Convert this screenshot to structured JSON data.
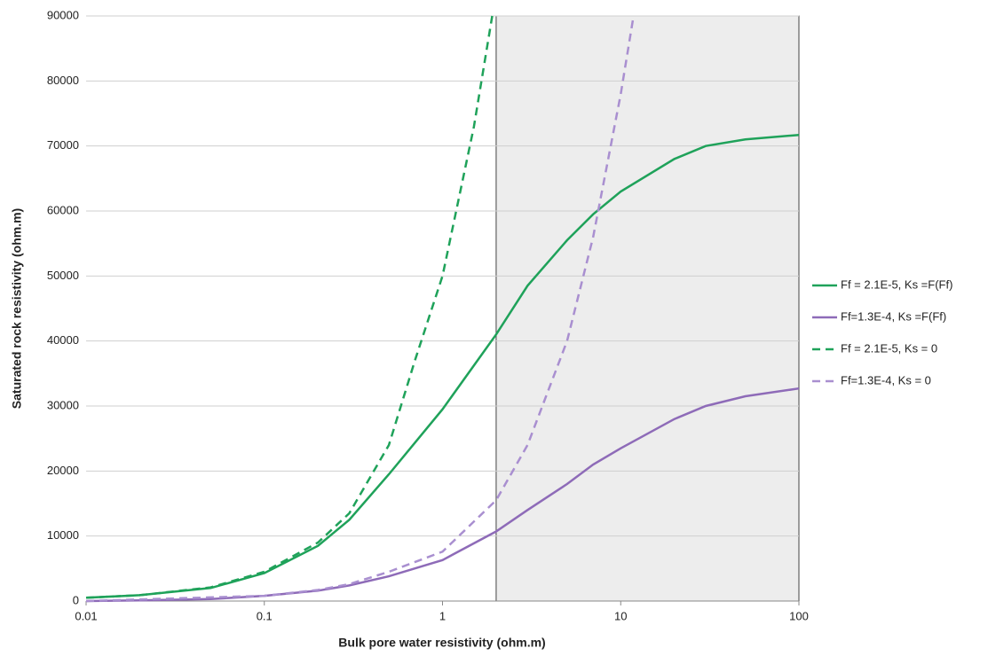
{
  "chart_data": {
    "type": "line",
    "xlabel": "Bulk pore water resistivity (ohm.m)",
    "ylabel": "Saturated rock resistivity (ohm.m)",
    "xscale": "log",
    "xlim": [
      0.01,
      100
    ],
    "xticks": [
      0.01,
      0.1,
      1,
      10,
      100
    ],
    "ylim": [
      0,
      90000
    ],
    "yticks": [
      0,
      10000,
      20000,
      30000,
      40000,
      50000,
      60000,
      70000,
      80000,
      90000
    ],
    "grid": true,
    "legend": "right",
    "shaded_region": [
      2,
      100
    ],
    "series": [
      {
        "name": "Ff = 2.1E-5, Ks =F(Ff)",
        "color": "#1fa25a",
        "dash": false,
        "x": [
          0.01,
          0.02,
          0.05,
          0.1,
          0.2,
          0.3,
          0.5,
          1,
          2,
          3,
          5,
          7,
          10,
          20,
          30,
          50,
          100
        ],
        "values": [
          500,
          900,
          2000,
          4300,
          8500,
          12500,
          19500,
          29500,
          41000,
          48500,
          55500,
          59500,
          63000,
          68000,
          70000,
          71000,
          71700
        ]
      },
      {
        "name": "Ff=1.3E-4, Ks =F(Ff)",
        "color": "#8e6bb8",
        "dash": false,
        "x": [
          0.01,
          0.02,
          0.05,
          0.1,
          0.2,
          0.3,
          0.5,
          1,
          2,
          3,
          5,
          7,
          10,
          20,
          30,
          50,
          100
        ],
        "values": [
          0,
          100,
          300,
          800,
          1600,
          2400,
          3800,
          6300,
          10700,
          14000,
          18000,
          21000,
          23500,
          28000,
          30000,
          31500,
          32700
        ]
      },
      {
        "name": "Ff = 2.1E-5, Ks = 0",
        "color": "#1fa25a",
        "dash": true,
        "x": [
          0.01,
          0.02,
          0.05,
          0.1,
          0.2,
          0.3,
          0.5,
          0.7,
          1,
          1.5,
          1.9
        ],
        "values": [
          500,
          900,
          2100,
          4500,
          9000,
          13500,
          24000,
          37000,
          50000,
          73000,
          90000
        ]
      },
      {
        "name": "Ff=1.3E-4, Ks = 0",
        "color": "#a98fd0",
        "dash": true,
        "x": [
          0.01,
          0.1,
          0.2,
          0.3,
          0.5,
          1,
          2,
          3,
          5,
          7,
          10,
          11.8
        ],
        "values": [
          0,
          800,
          1700,
          2600,
          4500,
          7600,
          15500,
          24000,
          40000,
          56000,
          78000,
          90000
        ]
      }
    ]
  }
}
